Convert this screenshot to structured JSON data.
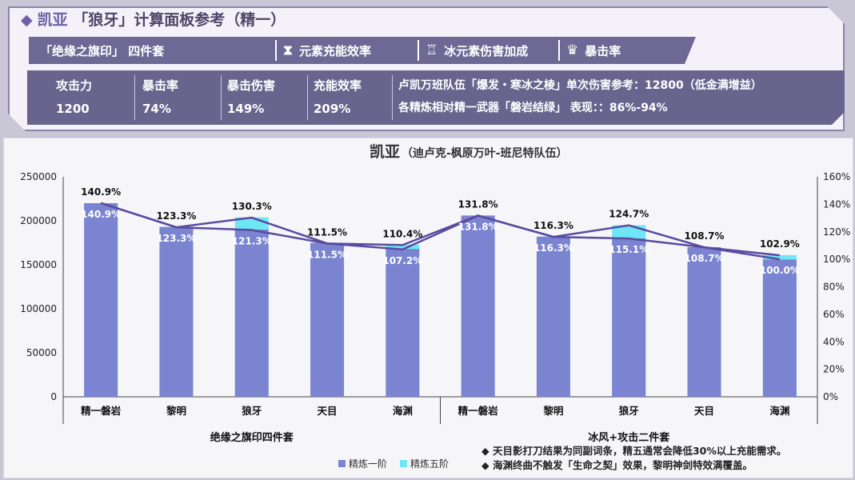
{
  "header": {
    "diamond": "◆",
    "character": "凯亚",
    "title_rest": "「狼牙」计算面板参考（精一）",
    "tags": [
      {
        "label": "「绝缘之旗印」 四件套",
        "icon": ""
      },
      {
        "label": "元素充能效率",
        "icon": "hourglass-icon"
      },
      {
        "label": "冰元素伤害加成",
        "icon": "goblet-icon"
      },
      {
        "label": "暴击率",
        "icon": "crown-icon"
      }
    ],
    "stats": [
      {
        "label": "攻击力",
        "value": "1200"
      },
      {
        "label": "暴击率",
        "value": "74%"
      },
      {
        "label": "暴击伤害",
        "value": "149%"
      },
      {
        "label": "充能效率",
        "value": "209%"
      }
    ],
    "note1": "卢凯万班队伍「爆发・寒冰之棱」单次伤害参考：12800（低金满增益）",
    "note2": "各精炼相对精一武器「磐岩结绿」 表现：：86%-94%"
  },
  "chart_data": {
    "type": "bar",
    "title": "凯亚",
    "subtitle": "（迪卢克-枫原万叶-班尼特队伍）",
    "categories": [
      "精一磐岩",
      "黎明",
      "狼牙",
      "天目",
      "海渊",
      "精一磐岩",
      "黎明",
      "狼牙",
      "天目",
      "海渊"
    ],
    "groups": [
      {
        "label": "绝缘之旗印四件套",
        "span": [
          0,
          4
        ]
      },
      {
        "label": "冰风+攻击二件套",
        "span": [
          5,
          9
        ]
      }
    ],
    "ylim": [
      0,
      250000
    ],
    "yticks": [
      "0",
      "50000",
      "100000",
      "150000",
      "200000",
      "250000"
    ],
    "y2lim": [
      0,
      160
    ],
    "y2ticks": [
      "0%",
      "20%",
      "40%",
      "60%",
      "80%",
      "100%",
      "120%",
      "140%",
      "160%"
    ],
    "series": [
      {
        "name": "精炼一阶",
        "color": "#7b84d0",
        "values": [
          220000,
          193000,
          190000,
          175000,
          168000,
          206000,
          182000,
          180000,
          170000,
          156000
        ],
        "pct_labels": [
          "140.9%",
          "123.3%",
          "121.3%",
          "111.5%",
          "107.2%",
          "131.8%",
          "116.3%",
          "115.1%",
          "108.7%",
          "100.0%"
        ],
        "pct_values": [
          140.9,
          123.3,
          121.3,
          111.5,
          107.2,
          131.8,
          116.3,
          115.1,
          108.7,
          100.0
        ]
      },
      {
        "name": "精炼五阶",
        "color": "#6ee6f4",
        "values": [
          220000,
          193000,
          204000,
          175000,
          173000,
          206000,
          182000,
          195000,
          170000,
          161000
        ],
        "pct_labels": [
          "140.9%",
          "123.3%",
          "130.3%",
          "111.5%",
          "110.4%",
          "131.8%",
          "116.3%",
          "124.7%",
          "108.7%",
          "102.9%"
        ],
        "pct_values": [
          140.9,
          123.3,
          130.3,
          111.5,
          110.4,
          131.8,
          116.3,
          124.7,
          108.7,
          102.9
        ]
      }
    ],
    "line_color": "#5a4aa0",
    "legend_position": "bottom-left",
    "notes": [
      "◆ 天目影打刀结果为同副词条，精五通常会降低30%以上充能需求。",
      "◆ 海渊终曲不触发「生命之契」效果，黎明神剑特效满覆盖。"
    ]
  }
}
